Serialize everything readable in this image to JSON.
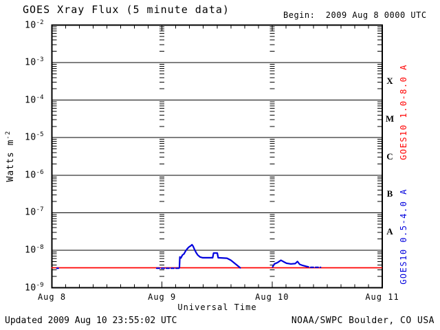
{
  "header": {
    "title": "GOES Xray Flux (5 minute data)",
    "begin": "Begin:  2009 Aug 8 0000 UTC"
  },
  "footer": {
    "updated": "Updated 2009 Aug 10 23:55:02 UTC",
    "source": "NOAA/SWPC Boulder, CO USA"
  },
  "chart_data": {
    "type": "line",
    "title": "GOES Xray Flux (5 minute data)",
    "xlabel": "Universal Time",
    "ylabel_base": "Watts m",
    "ylabel_exp": "-2",
    "x_axis": {
      "unit": "days",
      "range_days": [
        0,
        3
      ],
      "ticks": [
        {
          "label": "Aug 8",
          "day": 0
        },
        {
          "label": "Aug 9",
          "day": 1
        },
        {
          "label": "Aug 10",
          "day": 2
        },
        {
          "label": "Aug 11",
          "day": 3
        }
      ],
      "minor_tick_hours": 3
    },
    "y_axis": {
      "scale": "log",
      "range": [
        1e-09,
        0.01
      ],
      "tick_exponents": [
        -2,
        -3,
        -4,
        -5,
        -6,
        -7,
        -8,
        -9
      ]
    },
    "grid": "horizontal decade lines; minor log tick columns at day boundaries",
    "flare_classes": [
      {
        "label": "X",
        "log_center": -3.5
      },
      {
        "label": "M",
        "log_center": -4.5
      },
      {
        "label": "C",
        "log_center": -5.5
      },
      {
        "label": "B",
        "log_center": -6.5
      },
      {
        "label": "A",
        "log_center": -7.5
      }
    ],
    "series": [
      {
        "name": "GOES10 1.0-8.0 A",
        "color": "#ff0000",
        "segments": [
          {
            "dashed": false,
            "points": [
              [
                0.0,
                3.4e-09
              ],
              [
                2.995,
                3.4e-09
              ]
            ]
          }
        ]
      },
      {
        "name": "GOES10 0.5-4.0 A",
        "color": "#0000dd",
        "segments": [
          {
            "dashed": false,
            "points": [
              [
                0.045,
                3.3e-09
              ],
              [
                0.058,
                3.3e-09
              ]
            ]
          },
          {
            "dashed": true,
            "points": [
              [
                0.952,
                3.3e-09
              ],
              [
                1.156,
                3.3e-09
              ]
            ]
          },
          {
            "dashed": false,
            "points": [
              [
                1.158,
                3.4e-09
              ],
              [
                1.162,
                6.6e-09
              ],
              [
                1.172,
                6.2e-09
              ],
              [
                1.185,
                7.4e-09
              ],
              [
                1.2,
                8e-09
              ],
              [
                1.215,
                9.6e-09
              ],
              [
                1.23,
                1.1e-08
              ],
              [
                1.245,
                1.22e-08
              ],
              [
                1.26,
                1.3e-08
              ],
              [
                1.272,
                1.4e-08
              ],
              [
                1.282,
                1.28e-08
              ],
              [
                1.295,
                1.05e-08
              ],
              [
                1.31,
                8.6e-09
              ],
              [
                1.325,
                7.4e-09
              ],
              [
                1.345,
                6.6e-09
              ],
              [
                1.37,
                6.3e-09
              ],
              [
                1.46,
                6.3e-09
              ],
              [
                1.468,
                8.4e-09
              ],
              [
                1.502,
                8.4e-09
              ],
              [
                1.51,
                6.3e-09
              ],
              [
                1.59,
                6.1e-09
              ],
              [
                1.625,
                5.4e-09
              ],
              [
                1.655,
                4.6e-09
              ],
              [
                1.685,
                3.9e-09
              ],
              [
                1.71,
                3.4e-09
              ]
            ]
          },
          {
            "dashed": false,
            "points": [
              [
                2.005,
                3.6e-09
              ],
              [
                2.02,
                4.3e-09
              ],
              [
                2.05,
                4.7e-09
              ],
              [
                2.08,
                5.4e-09
              ],
              [
                2.1,
                5e-09
              ],
              [
                2.13,
                4.5e-09
              ],
              [
                2.17,
                4.3e-09
              ],
              [
                2.21,
                4.4e-09
              ],
              [
                2.23,
                5e-09
              ],
              [
                2.25,
                4.2e-09
              ],
              [
                2.28,
                3.9e-09
              ],
              [
                2.31,
                3.7e-09
              ],
              [
                2.33,
                3.6e-09
              ]
            ]
          },
          {
            "dashed": true,
            "points": [
              [
                2.35,
                3.5e-09
              ],
              [
                2.44,
                3.5e-09
              ]
            ]
          }
        ]
      }
    ]
  }
}
